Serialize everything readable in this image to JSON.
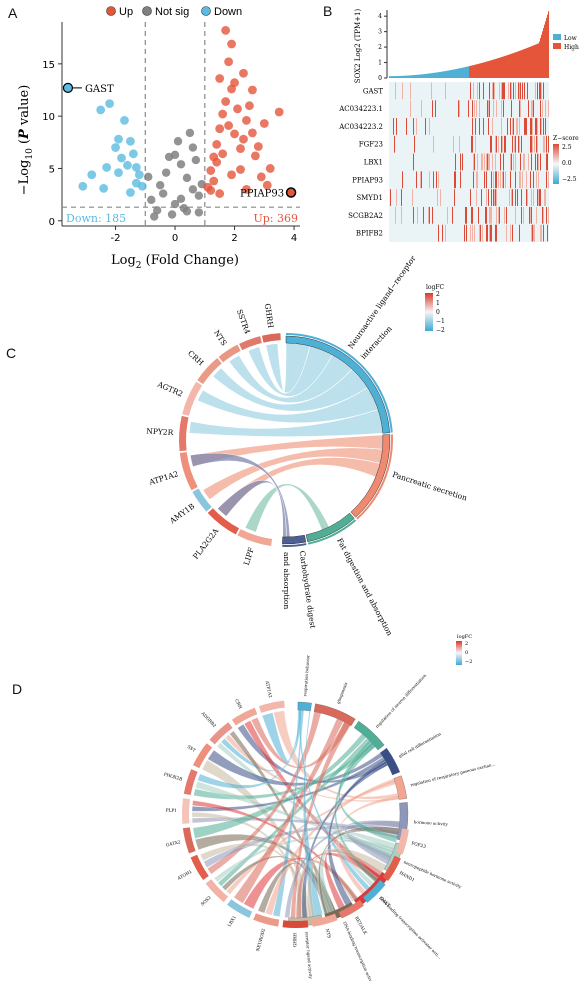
{
  "panels": {
    "a": "A",
    "b": "B",
    "c": "C",
    "d": "D"
  },
  "colors": {
    "up": "#e5553a",
    "down": "#5bbbe0",
    "notsig": "#808080",
    "low": "#4fb0d6",
    "high": "#e5553a"
  },
  "chart_data": [
    {
      "type": "scatter",
      "id": "A",
      "legend": [
        "Up",
        "Not sig",
        "Down"
      ],
      "xlabel": "Log2 (Fold Change)",
      "ylabel": "-Log10 (P value)",
      "xticks": [
        "-2",
        "0",
        "2",
        "4"
      ],
      "yticks": [
        "0",
        "5",
        "10",
        "15"
      ],
      "xlim": [
        -3.8,
        4.2
      ],
      "ylim": [
        -0.5,
        19
      ],
      "thresholds": {
        "fc": [
          -1,
          1
        ],
        "p": 1.3
      },
      "down_count_label": "Down: 185",
      "up_count_label": "Up: 369",
      "annotations": [
        {
          "label": "GAST",
          "x": -3.6,
          "y": 12.7
        },
        {
          "label": "PPIAP93",
          "x": 3.9,
          "y": 2.7
        }
      ],
      "up_points": [
        [
          1.1,
          3.2
        ],
        [
          1.2,
          4.8
        ],
        [
          1.3,
          6.1
        ],
        [
          1.4,
          7.3
        ],
        [
          1.5,
          8.8
        ],
        [
          1.6,
          10.2
        ],
        [
          1.7,
          11.4
        ],
        [
          1.8,
          9.1
        ],
        [
          1.9,
          12.6
        ],
        [
          2.0,
          8.3
        ],
        [
          2.1,
          10.7
        ],
        [
          2.2,
          6.9
        ],
        [
          2.3,
          7.8
        ],
        [
          2.4,
          9.6
        ],
        [
          2.5,
          11.0
        ],
        [
          2.6,
          8.4
        ],
        [
          2.7,
          6.2
        ],
        [
          2.8,
          7.1
        ],
        [
          3.0,
          9.3
        ],
        [
          3.2,
          5.0
        ],
        [
          3.5,
          10.4
        ],
        [
          1.5,
          13.6
        ],
        [
          1.8,
          15.2
        ],
        [
          1.9,
          16.9
        ],
        [
          2.0,
          13.2
        ],
        [
          1.7,
          18.2
        ],
        [
          2.3,
          14.1
        ],
        [
          2.6,
          12.5
        ],
        [
          1.4,
          5.6
        ],
        [
          1.6,
          6.4
        ],
        [
          1.2,
          2.9
        ],
        [
          1.3,
          3.8
        ],
        [
          2.2,
          4.9
        ],
        [
          2.9,
          4.2
        ],
        [
          3.1,
          3.4
        ],
        [
          1.5,
          2.6
        ],
        [
          2.4,
          3.0
        ],
        [
          1.9,
          4.4
        ]
      ],
      "down_points": [
        [
          -3.6,
          12.7
        ],
        [
          -2.0,
          7.0
        ],
        [
          -1.9,
          7.8
        ],
        [
          -1.7,
          9.6
        ],
        [
          -1.5,
          7.6
        ],
        [
          -1.4,
          6.4
        ],
        [
          -1.3,
          5.1
        ],
        [
          -1.2,
          4.4
        ],
        [
          -1.1,
          3.3
        ],
        [
          -2.3,
          5.1
        ],
        [
          -2.8,
          4.4
        ],
        [
          -3.1,
          3.3
        ],
        [
          -2.5,
          10.6
        ],
        [
          -2.2,
          11.2
        ],
        [
          -1.8,
          6.0
        ],
        [
          -1.6,
          5.3
        ],
        [
          -1.3,
          3.6
        ],
        [
          -2.4,
          3.1
        ],
        [
          -1.5,
          2.7
        ],
        [
          -1.9,
          4.6
        ]
      ],
      "notsig_points": [
        [
          -0.8,
          2.0
        ],
        [
          -0.5,
          3.4
        ],
        [
          -0.3,
          4.6
        ],
        [
          0.0,
          6.3
        ],
        [
          0.2,
          5.4
        ],
        [
          0.4,
          4.1
        ],
        [
          0.6,
          3.0
        ],
        [
          0.8,
          2.4
        ],
        [
          -0.6,
          1.0
        ],
        [
          0.3,
          1.2
        ],
        [
          0.5,
          8.4
        ],
        [
          0.1,
          7.6
        ],
        [
          -0.2,
          6.1
        ],
        [
          0.7,
          5.8
        ],
        [
          -0.4,
          2.6
        ],
        [
          0.9,
          3.5
        ],
        [
          -0.9,
          4.2
        ],
        [
          0.6,
          7.0
        ],
        [
          0.2,
          2.1
        ],
        [
          -0.1,
          0.6
        ],
        [
          0.4,
          0.9
        ],
        [
          -0.7,
          0.4
        ],
        [
          0.8,
          0.8
        ],
        [
          0.0,
          1.6
        ]
      ]
    },
    {
      "type": "heatmap",
      "id": "B",
      "ylabel": "SOX2 Log2 (TPM+1)",
      "yticks": [
        "0",
        "1",
        "2",
        "3",
        "4"
      ],
      "legend": [
        "Low",
        "High"
      ],
      "zlabel": "Z−score",
      "zticks": [
        "2.5",
        "0.0",
        "−2.5"
      ],
      "genes": [
        "GAST",
        "AC034223.1",
        "AC034223.2",
        "FGF23",
        "LBX1",
        "PPIAP93",
        "SMYD1",
        "SCGB2A2",
        "BPIFB2"
      ]
    },
    {
      "type": "chord",
      "id": "C",
      "legend_title": "logFC",
      "legend_ticks": [
        "2",
        "1",
        "0",
        "−1",
        "−2"
      ],
      "genes": [
        "GHRH",
        "SSTR4",
        "NTS",
        "CRH",
        "AGTR2",
        "NPY2R",
        "ATP1A2",
        "AMY1B",
        "PLA2G2A",
        "LIPF"
      ],
      "pathways": [
        "Neuroactive ligand−receptor interaction",
        "Pancreatic secretion",
        "Fat digestion and absorption",
        "Carbohydrate digest and absorption"
      ]
    },
    {
      "type": "chord",
      "id": "D",
      "legend_title": "logFC",
      "legend_ticks": [
        "2",
        "0",
        "−2"
      ],
      "genes": [
        "ATP1A2",
        "CRH",
        "ADGRB2",
        "SST",
        "PHOX2B",
        "PLP1",
        "GATA2",
        "ATOH1",
        "SOX2",
        "LBX1",
        "NEUROD2",
        "GHRH",
        "NTS",
        "RET/ALK",
        "GAST",
        "HAND1",
        "FGF23"
      ],
      "terms": [
        "respiration behavior",
        "gliogenesis",
        "regulation of neuron differentiation",
        "glial cell differentiation",
        "regulation of respiratory gaseous exchange by nervous system process",
        "hormone activity",
        "neuropeptide hormone activity",
        "DNA-binding transcription activator activity, RNA polymerase II-specific",
        "DNA-binding transcription activator activity",
        "receptor ligand activity"
      ]
    }
  ]
}
